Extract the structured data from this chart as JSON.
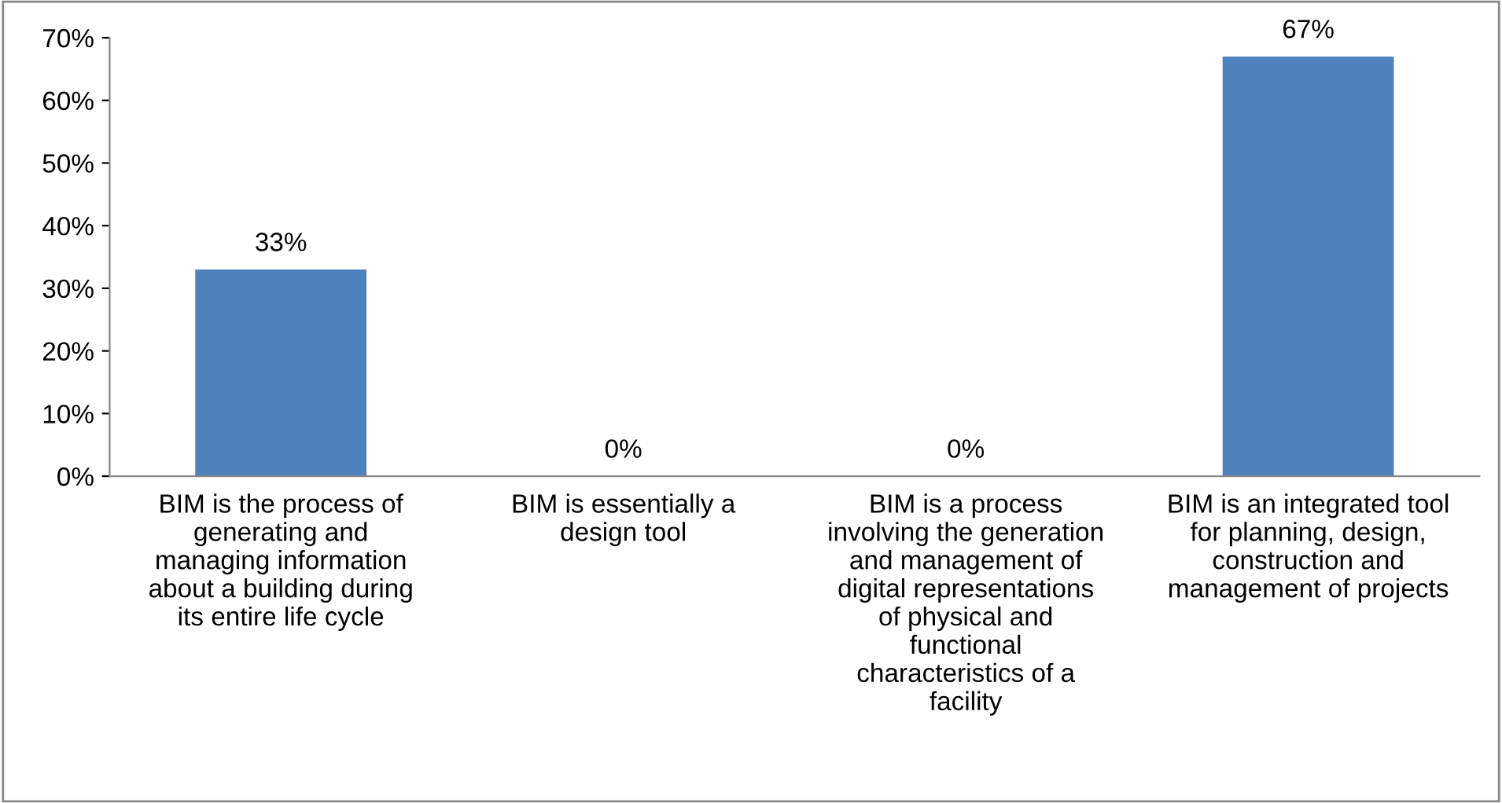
{
  "chart_data": {
    "type": "bar",
    "categories": [
      "BIM is the process of\ngenerating and\nmanaging information\nabout a building during\nits entire life cycle",
      "BIM is essentially a\ndesign tool",
      "BIM is a process\ninvolving the generation\nand management of\ndigital representations\nof physical and\nfunctional\ncharacteristics of a\nfacility",
      "BIM is an integrated tool\nfor planning, design,\nconstruction and\nmanagement of projects"
    ],
    "values": [
      33,
      0,
      0,
      67
    ],
    "value_labels": [
      "33%",
      "0%",
      "0%",
      "67%"
    ],
    "color": "#4f81bd",
    "ylim": [
      0,
      70
    ],
    "yticks": [
      {
        "value": 0,
        "label": "0%"
      },
      {
        "value": 10,
        "label": "10%"
      },
      {
        "value": 20,
        "label": "20%"
      },
      {
        "value": 30,
        "label": "30%"
      },
      {
        "value": 40,
        "label": "40%"
      },
      {
        "value": 50,
        "label": "50%"
      },
      {
        "value": 60,
        "label": "60%"
      },
      {
        "value": 70,
        "label": "70%"
      }
    ],
    "grid": false,
    "legend": false
  }
}
